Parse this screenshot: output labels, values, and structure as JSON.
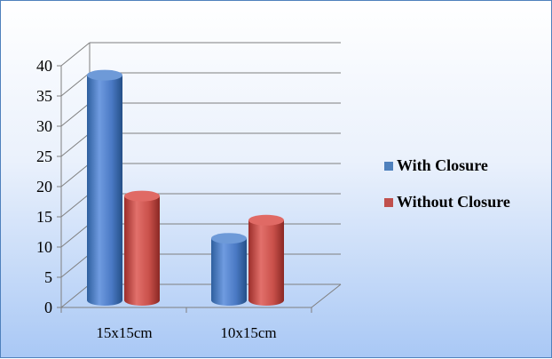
{
  "chart_data": {
    "type": "bar",
    "style": "3d-cylinder",
    "categories": [
      "15x15cm",
      "10x15cm"
    ],
    "series": [
      {
        "name": "With Closure",
        "values": [
          38,
          11
        ],
        "color": "#4f81bd"
      },
      {
        "name": "Without Closure",
        "values": [
          18,
          14
        ],
        "color": "#c0504d"
      }
    ],
    "ylim": [
      0,
      40
    ],
    "yticks": [
      0,
      5,
      10,
      15,
      20,
      25,
      30,
      35,
      40
    ],
    "grid": true,
    "legend": "right",
    "title": "",
    "xlabel": "",
    "ylabel": ""
  }
}
